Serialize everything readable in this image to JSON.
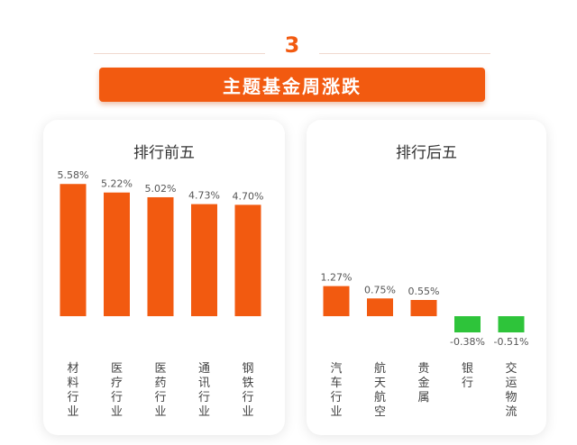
{
  "header": {
    "number": "3",
    "title": "主题基金周涨跌"
  },
  "colors": {
    "accent": "#f25a10",
    "positive_bar": "#f25a10",
    "negative_bar": "#2ec43a"
  },
  "chart_data": [
    {
      "type": "bar",
      "title": "排行前五",
      "categories": [
        "材料行业",
        "医疗行业",
        "医药行业",
        "通讯行业",
        "钢铁行业"
      ],
      "values": [
        5.58,
        5.22,
        5.02,
        4.73,
        4.7
      ],
      "value_labels": [
        "5.58%",
        "5.22%",
        "5.02%",
        "4.73%",
        "4.70%"
      ],
      "ylim": [
        0,
        6
      ]
    },
    {
      "type": "bar",
      "title": "排行后五",
      "categories": [
        "汽车行业",
        "航天航空",
        "贵金属",
        "银行",
        "交运物流"
      ],
      "values": [
        1.27,
        0.75,
        0.55,
        -0.38,
        -0.51
      ],
      "value_labels": [
        "1.27%",
        "0.75%",
        "0.55%",
        "-0.38%",
        "-0.51%"
      ],
      "ylim": [
        -0.8,
        6
      ]
    }
  ]
}
